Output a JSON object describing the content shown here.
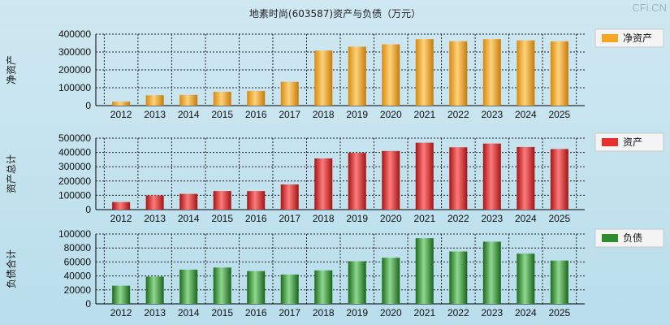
{
  "title": "地素时尚(603587)资产与负债（万元）",
  "watermark": "CFi.CN",
  "colors": {
    "net_assets": "#f5a623",
    "assets": "#e8302f",
    "liabilities": "#2e8b2e"
  },
  "chart_data": [
    {
      "type": "bar",
      "title": "",
      "ylabel": "净资产",
      "legend": "净资产",
      "categories": [
        "2012",
        "2013",
        "2014",
        "2015",
        "2016",
        "2017",
        "2018",
        "2019",
        "2020",
        "2021",
        "2022",
        "2023",
        "2024",
        "2025"
      ],
      "values": [
        22000,
        58000,
        60000,
        77000,
        82000,
        133000,
        308000,
        330000,
        343000,
        372000,
        360000,
        372000,
        365000,
        360000
      ],
      "ylim": [
        0,
        400000
      ],
      "yticks": [
        0,
        100000,
        200000,
        300000,
        400000
      ],
      "grid": true,
      "legend_position": "right"
    },
    {
      "type": "bar",
      "title": "",
      "ylabel": "资产总计",
      "legend": "资产",
      "categories": [
        "2012",
        "2013",
        "2014",
        "2015",
        "2016",
        "2017",
        "2018",
        "2019",
        "2020",
        "2021",
        "2022",
        "2023",
        "2024",
        "2025"
      ],
      "values": [
        53000,
        99000,
        110000,
        130000,
        130000,
        176000,
        358000,
        397000,
        410000,
        468000,
        436000,
        462000,
        438000,
        424000
      ],
      "ylim": [
        0,
        500000
      ],
      "yticks": [
        0,
        100000,
        200000,
        300000,
        400000,
        500000
      ],
      "grid": true,
      "legend_position": "right"
    },
    {
      "type": "bar",
      "title": "",
      "ylabel": "负债合计",
      "legend": "负债",
      "categories": [
        "2012",
        "2013",
        "2014",
        "2015",
        "2016",
        "2017",
        "2018",
        "2019",
        "2020",
        "2021",
        "2022",
        "2023",
        "2024",
        "2025"
      ],
      "values": [
        26000,
        39000,
        49000,
        52000,
        47000,
        42000,
        48000,
        61000,
        66000,
        94000,
        75000,
        89000,
        72000,
        62000
      ],
      "ylim": [
        0,
        100000
      ],
      "yticks": [
        0,
        20000,
        40000,
        60000,
        80000,
        100000
      ],
      "grid": true,
      "legend_position": "right"
    }
  ]
}
